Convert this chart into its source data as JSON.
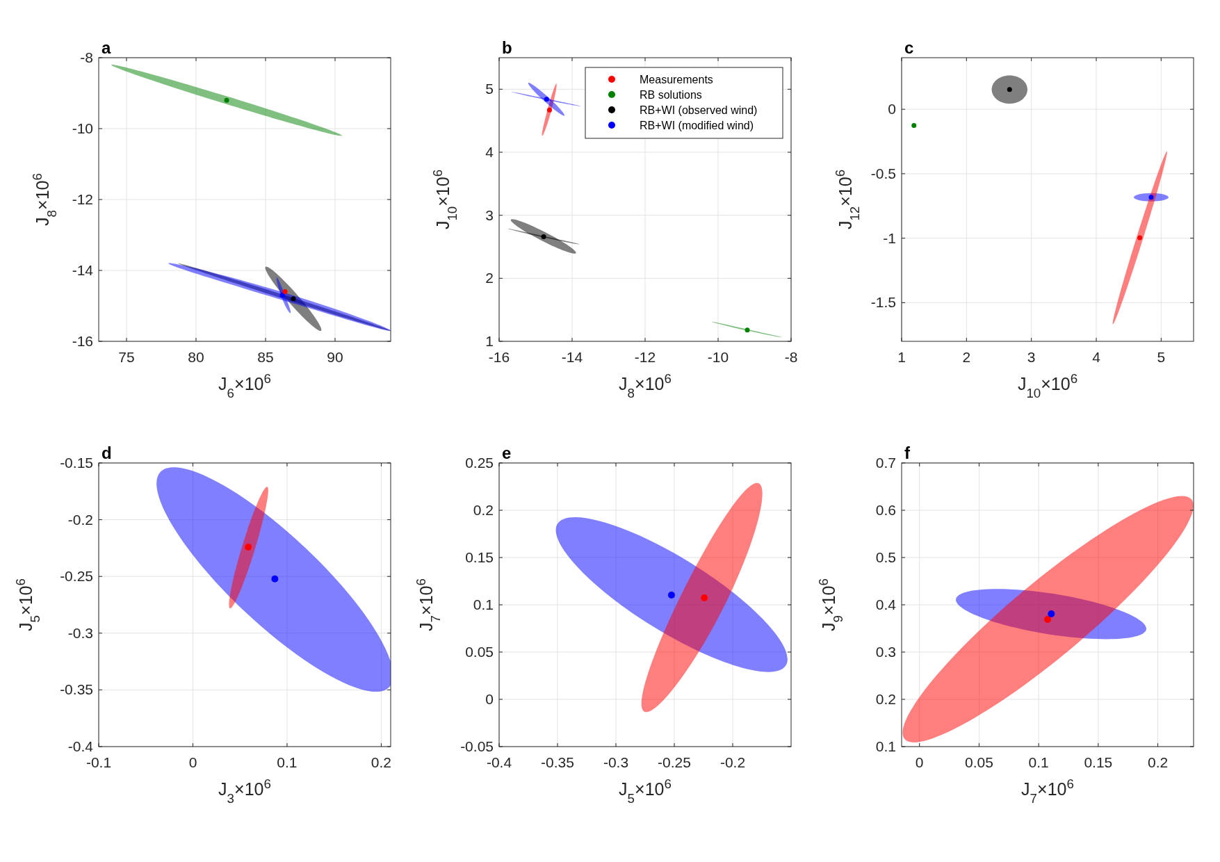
{
  "chart_data": [
    {
      "type": "scatter",
      "title": "a",
      "xlabel": "J$_{6}$×10$^{6}$",
      "ylabel": "J$_{8}$×10$^{6}$",
      "xlim": [
        73,
        94
      ],
      "ylim": [
        -16,
        -8
      ],
      "xticks": [
        75,
        80,
        85,
        90
      ],
      "yticks": [
        -16,
        -14,
        -12,
        -10,
        -8
      ],
      "grid": true,
      "legend": false,
      "series": [
        {
          "type": "area",
          "color": "#008000",
          "x": [
            90.5,
            82.1,
            73.9,
            82.3
          ],
          "values": [
            -10.2,
            -9.3,
            -8.2,
            -9.1
          ]
        },
        {
          "marker": "circle",
          "color": "#008000",
          "x": [
            82.2
          ],
          "values": [
            -9.2
          ]
        },
        {
          "type": "area",
          "color": "#000000",
          "x": [
            94.0,
            86.3,
            78.7,
            86.4
          ],
          "values": [
            -15.7,
            -14.8,
            -13.8,
            -14.7
          ]
        },
        {
          "type": "area",
          "color": "#000000",
          "x": [
            89.0,
            86.7,
            85.0,
            87.3
          ],
          "values": [
            -15.7,
            -14.9,
            -13.9,
            -14.7
          ]
        },
        {
          "marker": "circle",
          "color": "#000000",
          "x": [
            87.0
          ],
          "values": [
            -14.8
          ]
        },
        {
          "type": "area",
          "color": "#0000ff",
          "x": [
            94.0,
            85.9,
            78.0,
            86.1
          ],
          "values": [
            -15.7,
            -14.8,
            -13.8,
            -14.6
          ]
        },
        {
          "type": "area",
          "color": "#0000ff",
          "x": [
            86.8,
            86.2,
            85.8,
            86.4
          ],
          "values": [
            -15.2,
            -14.8,
            -14.2,
            -14.7
          ]
        },
        {
          "marker": "circle",
          "color": "#0000ff",
          "x": [
            86.2
          ],
          "values": [
            -14.7
          ]
        },
        {
          "marker": "circle",
          "color": "#ff0000",
          "x": [
            86.4
          ],
          "values": [
            -14.6
          ]
        }
      ]
    },
    {
      "type": "scatter",
      "title": "b",
      "xlabel": "J$_{8}$×10$^{6}$",
      "ylabel": "J$_{10}$×10$^{6}$",
      "xlim": [
        -16,
        -8
      ],
      "ylim": [
        1,
        5.5
      ],
      "xticks": [
        -16,
        -14,
        -12,
        -10,
        -8
      ],
      "yticks": [
        1,
        2,
        3,
        4,
        5
      ],
      "grid": true,
      "legend": "top right",
      "series": [
        {
          "type": "area",
          "color": "#ff0000",
          "x": [
            -14.43,
            -14.57,
            -14.82,
            -14.67
          ],
          "values": [
            5.09,
            4.66,
            4.26,
            4.68
          ]
        },
        {
          "marker": "circle",
          "name": "Measurements",
          "color": "#ff0000",
          "x": [
            -14.62
          ],
          "values": [
            4.67
          ]
        },
        {
          "type": "area",
          "color": "#008000",
          "x": [
            -8.23,
            -9.2,
            -10.17,
            -9.2
          ],
          "values": [
            1.06,
            1.17,
            1.31,
            1.19
          ]
        },
        {
          "marker": "circle",
          "name": "RB solutions",
          "color": "#008000",
          "x": [
            -9.2
          ],
          "values": [
            1.18
          ]
        },
        {
          "type": "area",
          "color": "#000000",
          "x": [
            -13.89,
            -14.84,
            -15.68,
            -14.73
          ],
          "values": [
            2.4,
            2.6,
            2.93,
            2.73
          ]
        },
        {
          "type": "area",
          "color": "#000000",
          "x": [
            -13.8,
            -14.79,
            -15.77,
            -14.78
          ],
          "values": [
            2.54,
            2.65,
            2.79,
            2.67
          ]
        },
        {
          "marker": "circle",
          "name": "RB+WI (observed wind)",
          "color": "#000000",
          "x": [
            -14.78
          ],
          "values": [
            2.66
          ]
        },
        {
          "type": "area",
          "color": "#0000ff",
          "x": [
            -14.21,
            -14.76,
            -15.2,
            -14.65
          ],
          "values": [
            4.58,
            4.81,
            5.1,
            4.87
          ]
        },
        {
          "type": "area",
          "color": "#0000ff",
          "x": [
            -13.75,
            -14.71,
            -15.66,
            -14.71
          ],
          "values": [
            4.73,
            4.83,
            4.96,
            4.85
          ]
        },
        {
          "marker": "circle",
          "name": "RB+WI (modified wind)",
          "color": "#0000ff",
          "x": [
            -14.7
          ],
          "values": [
            4.84
          ]
        }
      ]
    },
    {
      "type": "scatter",
      "title": "c",
      "xlabel": "J$_{10}$×10$^{6}$",
      "ylabel": "J$_{12}$×10$^{6}$",
      "xlim": [
        1,
        5.5
      ],
      "ylim": [
        -1.8,
        0.4
      ],
      "xticks": [
        1,
        2,
        3,
        4,
        5
      ],
      "yticks": [
        -1.5,
        -1,
        -0.5,
        0
      ],
      "grid": true,
      "legend": false,
      "series": [
        {
          "marker": "circle",
          "color": "#008000",
          "x": [
            1.19
          ],
          "values": [
            -0.126
          ]
        },
        {
          "type": "area",
          "color": "#000000",
          "x": [
            2.939,
            2.664,
            2.388,
            2.664
          ],
          "values": [
            0.153,
            0.262,
            0.153,
            0.043
          ]
        },
        {
          "marker": "circle",
          "color": "#000000",
          "x": [
            2.664
          ],
          "values": [
            0.153
          ]
        },
        {
          "type": "area",
          "color": "#0000ff",
          "x": [
            5.114,
            4.846,
            4.578,
            4.846
          ],
          "values": [
            -0.683,
            -0.65,
            -0.683,
            -0.715
          ]
        },
        {
          "marker": "circle",
          "color": "#0000ff",
          "x": [
            4.846
          ],
          "values": [
            -0.683
          ]
        },
        {
          "type": "area",
          "color": "#ff0000",
          "x": [
            5.089,
            4.72,
            4.256,
            4.625
          ],
          "values": [
            -0.327,
            -1.004,
            -1.667,
            -0.989
          ]
        },
        {
          "marker": "circle",
          "color": "#ff0000",
          "x": [
            4.671
          ],
          "values": [
            -0.997
          ]
        }
      ]
    },
    {
      "type": "scatter",
      "title": "d",
      "xlabel": "J$_{3}$×10$^{6}$",
      "ylabel": "J$_{5}$×10$^{6}$",
      "xlim": [
        -0.1,
        0.21
      ],
      "ylim": [
        -0.4,
        -0.15
      ],
      "xticks": [
        -0.1,
        0,
        0.1,
        0.2
      ],
      "yticks": [
        -0.4,
        -0.35,
        -0.3,
        -0.25,
        -0.2,
        -0.15
      ],
      "grid": true,
      "legend": false,
      "series": [
        {
          "type": "area",
          "color": "#0000ff",
          "x": [
            0.2084,
            0.0548,
            -0.0344,
            0.1193
          ],
          "values": [
            -0.3476,
            -0.2806,
            -0.1578,
            -0.2247
          ]
        },
        {
          "marker": "circle",
          "color": "#0000ff",
          "x": [
            0.087
          ],
          "values": [
            -0.2522
          ]
        },
        {
          "type": "area",
          "color": "#ff0000",
          "x": [
            0.0789,
            0.0658,
            0.0395,
            0.0525
          ],
          "values": [
            -0.171,
            -0.2262,
            -0.2782,
            -0.2229
          ]
        },
        {
          "marker": "circle",
          "color": "#ff0000",
          "x": [
            0.0588
          ],
          "values": [
            -0.2241
          ]
        }
      ]
    },
    {
      "type": "scatter",
      "title": "e",
      "xlabel": "J$_{5}$×10$^{6}$",
      "ylabel": "J$_{7}$×10$^{6}$",
      "xlim": [
        -0.4,
        -0.15
      ],
      "ylim": [
        -0.05,
        0.25
      ],
      "xticks": [
        -0.4,
        -0.35,
        -0.3,
        -0.25,
        -0.2
      ],
      "yticks": [
        -0.05,
        0,
        0.05,
        0.1,
        0.15,
        0.2,
        0.25
      ],
      "grid": true,
      "legend": false,
      "series": [
        {
          "type": "area",
          "color": "#0000ff",
          "x": [
            -0.1544,
            -0.2686,
            -0.3501,
            -0.236
          ],
          "values": [
            0.036,
            0.0773,
            0.1855,
            0.1443
          ]
        },
        {
          "marker": "circle",
          "color": "#0000ff",
          "x": [
            -0.2524
          ],
          "values": [
            0.1103
          ]
        },
        {
          "type": "area",
          "color": "#ff0000",
          "x": [
            -0.1775,
            -0.208,
            -0.2757,
            -0.2408
          ],
          "values": [
            0.2284,
            0.0968,
            -0.013,
            0.1187
          ]
        },
        {
          "marker": "circle",
          "color": "#ff0000",
          "x": [
            -0.2243
          ],
          "values": [
            0.1074
          ]
        }
      ]
    },
    {
      "type": "scatter",
      "title": "f",
      "xlabel": "J$_{7}$×10$^{6}$",
      "ylabel": "J$_{9}$×10$^{6}$",
      "xlim": [
        -0.015,
        0.23
      ],
      "ylim": [
        0.1,
        0.7
      ],
      "xticks": [
        0,
        0.05,
        0.1,
        0.15,
        0.2
      ],
      "yticks": [
        0.1,
        0.2,
        0.3,
        0.4,
        0.5,
        0.6,
        0.7
      ],
      "grid": true,
      "legend": false,
      "series": [
        {
          "type": "area",
          "color": "#0000ff",
          "x": [
            0.1903,
            0.1077,
            0.0306,
            0.1131
          ],
          "values": [
            0.348,
            0.338,
            0.412,
            0.423
          ]
        },
        {
          "type": "area",
          "color": "#ff0000",
          "x": [
            0.2282,
            0.128,
            -0.0125,
            0.0877
          ],
          "values": [
            0.623,
            0.309,
            0.116,
            0.43
          ]
        },
        {
          "marker": "circle",
          "color": "#ff0000",
          "x": [
            0.1075
          ],
          "values": [
            0.369
          ]
        },
        {
          "marker": "circle",
          "color": "#0000ff",
          "x": [
            0.1106
          ],
          "values": [
            0.381
          ]
        }
      ]
    }
  ]
}
